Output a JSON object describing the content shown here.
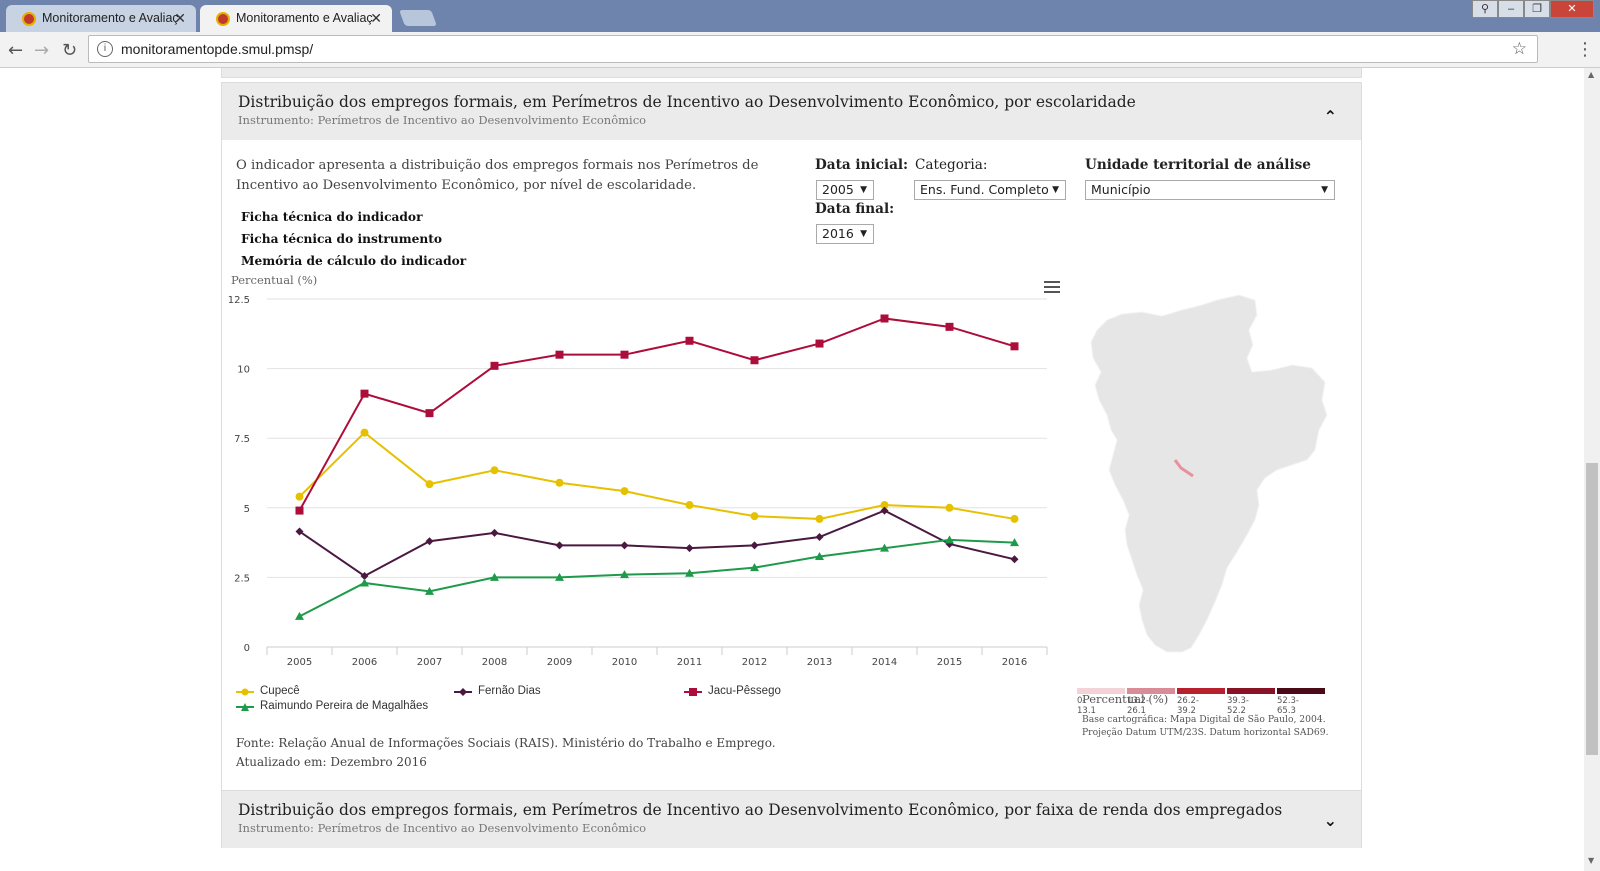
{
  "browser": {
    "tabs": [
      {
        "title": "Monitoramento e Avaliaç",
        "active": false
      },
      {
        "title": "Monitoramento e Avaliaç",
        "active": true
      }
    ],
    "url": "monitoramentopde.smul.pmsp/"
  },
  "panel1": {
    "title": "Distribuição dos empregos formais, em Perímetros de Incentivo ao Desenvolvimento Econômico, por escolaridade",
    "subtitle": "Instrumento: Perímetros de Incentivo ao Desenvolvimento Econômico",
    "description": "O indicador apresenta a distribuição dos empregos formais nos Perímetros de Incentivo ao Desenvolvimento Econômico, por nível de escolaridade.",
    "links": [
      "Ficha técnica do indicador",
      "Ficha técnica do instrumento",
      "Memória de cálculo do indicador"
    ],
    "filters": {
      "data_inicial_label": "Data inicial:",
      "data_inicial_value": "2005",
      "data_final_label": "Data final:",
      "data_final_value": "2016",
      "categoria_label": "Categoria:",
      "categoria_value": "Ens. Fund. Completo",
      "unidade_label": "Unidade territorial de análise",
      "unidade_value": "Município"
    },
    "source": "Fonte: Relação Anual de Informações Sociais (RAIS). Ministério do Trabalho e Emprego.",
    "updated": "Atualizado em: Dezembro 2016",
    "map": {
      "legend": [
        "0-13.1",
        "13.2-26.1",
        "26.2-39.2",
        "39.3-52.2",
        "52.3-65.3"
      ],
      "legend_colors": [
        "#f3d2d8",
        "#d98b97",
        "#b8202e",
        "#8a1226",
        "#4a0a18"
      ],
      "caption": "Percentual (%)",
      "note1": "Base cartográfica: Mapa Digital de São Paulo, 2004.",
      "note2": "Projeção Datum UTM/23S. Datum horizontal SAD69."
    }
  },
  "panel2": {
    "title": "Distribuição dos empregos formais, em Perímetros de Incentivo ao Desenvolvimento Econômico, por faixa de renda dos empregados",
    "subtitle": "Instrumento: Perímetros de Incentivo ao Desenvolvimento Econômico"
  },
  "chart_data": {
    "type": "line",
    "ylabel": "Percentual (%)",
    "ylim": [
      0,
      12.5
    ],
    "yticks": [
      "0",
      "2.5",
      "5",
      "7.5",
      "10",
      "12.5"
    ],
    "categories": [
      "2005",
      "2006",
      "2007",
      "2008",
      "2009",
      "2010",
      "2011",
      "2012",
      "2013",
      "2014",
      "2015",
      "2016"
    ],
    "grid": true,
    "legend": "bottom",
    "series": [
      {
        "name": "Cupecê",
        "color": "#e6c100",
        "marker": "circle",
        "values": [
          5.4,
          7.7,
          5.85,
          6.35,
          5.9,
          5.6,
          5.1,
          4.7,
          4.6,
          5.1,
          5.0,
          4.6
        ]
      },
      {
        "name": "Fernão Dias",
        "color": "#4a1942",
        "marker": "diamond",
        "values": [
          4.15,
          2.55,
          3.8,
          4.1,
          3.65,
          3.65,
          3.55,
          3.65,
          3.95,
          4.9,
          3.7,
          3.15
        ]
      },
      {
        "name": "Jacu-Pêssego",
        "color": "#ad0d3b",
        "marker": "square",
        "values": [
          4.9,
          9.1,
          8.4,
          10.1,
          10.5,
          10.5,
          11.0,
          10.3,
          10.9,
          11.8,
          11.5,
          10.8
        ]
      },
      {
        "name": "Raimundo Pereira de Magalhães",
        "color": "#1e9a4a",
        "marker": "triangle",
        "values": [
          1.1,
          2.3,
          2.0,
          2.5,
          2.5,
          2.6,
          2.65,
          2.85,
          3.25,
          3.55,
          3.85,
          3.75
        ]
      }
    ]
  }
}
